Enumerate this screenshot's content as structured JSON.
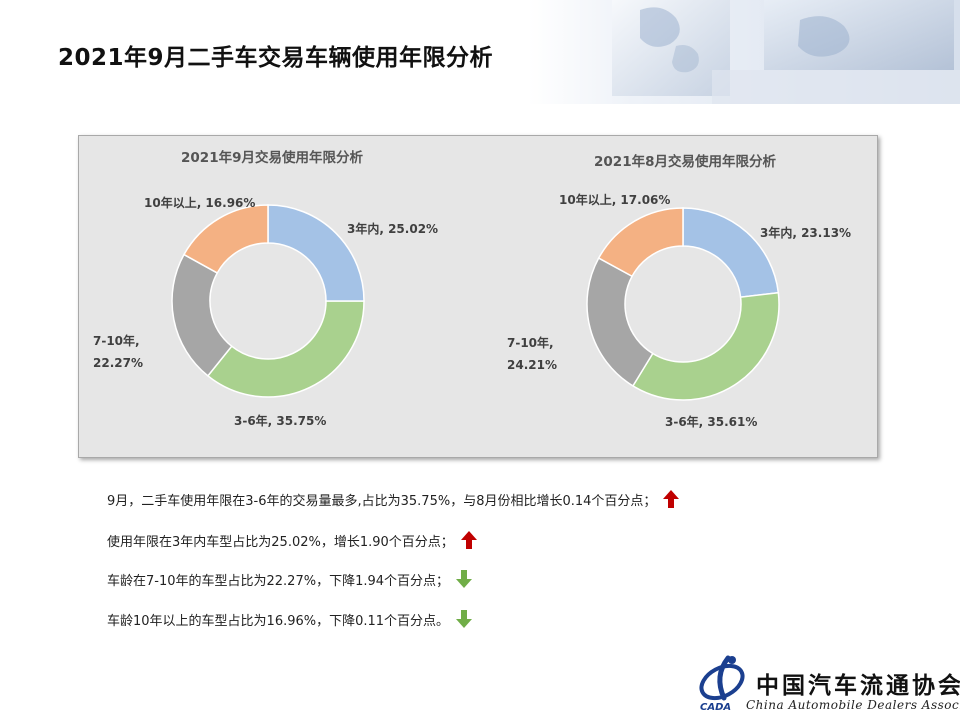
{
  "page": {
    "title": "2021年9月二手车交易车辆使用年限分析"
  },
  "chart_data": [
    {
      "type": "pie",
      "title": "2021年9月交易使用年限分析",
      "labels": [
        "3年内",
        "3-6年",
        "7-10年",
        "10年以上"
      ],
      "values": [
        25.02,
        35.75,
        22.27,
        16.96
      ],
      "label_texts": [
        "3年内, 25.02%",
        "3-6年, 35.75%",
        [
          "7-10年,",
          "22.27%"
        ],
        "10年以上, 16.96%"
      ],
      "colors": [
        "#a4c2e6",
        "#a9d18e",
        "#a6a6a6",
        "#f4b183"
      ],
      "donut": true,
      "legend": "none"
    },
    {
      "type": "pie",
      "title": "2021年8月交易使用年限分析",
      "labels": [
        "3年内",
        "3-6年",
        "7-10年",
        "10年以上"
      ],
      "values": [
        23.13,
        35.61,
        24.21,
        17.06
      ],
      "label_texts": [
        "3年内, 23.13%",
        "3-6年, 35.61%",
        [
          "7-10年,",
          "24.21%"
        ],
        "10年以上, 17.06%"
      ],
      "colors": [
        "#a4c2e6",
        "#a9d18e",
        "#a6a6a6",
        "#f4b183"
      ],
      "donut": true,
      "legend": "none"
    }
  ],
  "bullets": [
    {
      "text": "9月，二手车使用年限在3-6年的交易量最多,占比为35.75%，与8月份相比增长0.14个百分点；",
      "trend": "up",
      "icon": "red-up-arrow-icon"
    },
    {
      "text": "使用年限在3年内车型占比为25.02%，增长1.90个百分点；",
      "trend": "up",
      "icon": "red-up-arrow-icon"
    },
    {
      "text": "车龄在7-10年的车型占比为22.27%，下降1.94个百分点；",
      "trend": "down",
      "icon": "green-down-arrow-icon"
    },
    {
      "text": "车龄10年以上的车型占比为16.96%，下降0.11个百分点。",
      "trend": "down",
      "icon": "green-down-arrow-icon"
    }
  ],
  "colors": {
    "up": "#c00000",
    "down": "#70ad47"
  },
  "logo": {
    "name": "中国汽车流通协会",
    "english": "China Automobile Dealers Association",
    "abbr": "CADA"
  }
}
